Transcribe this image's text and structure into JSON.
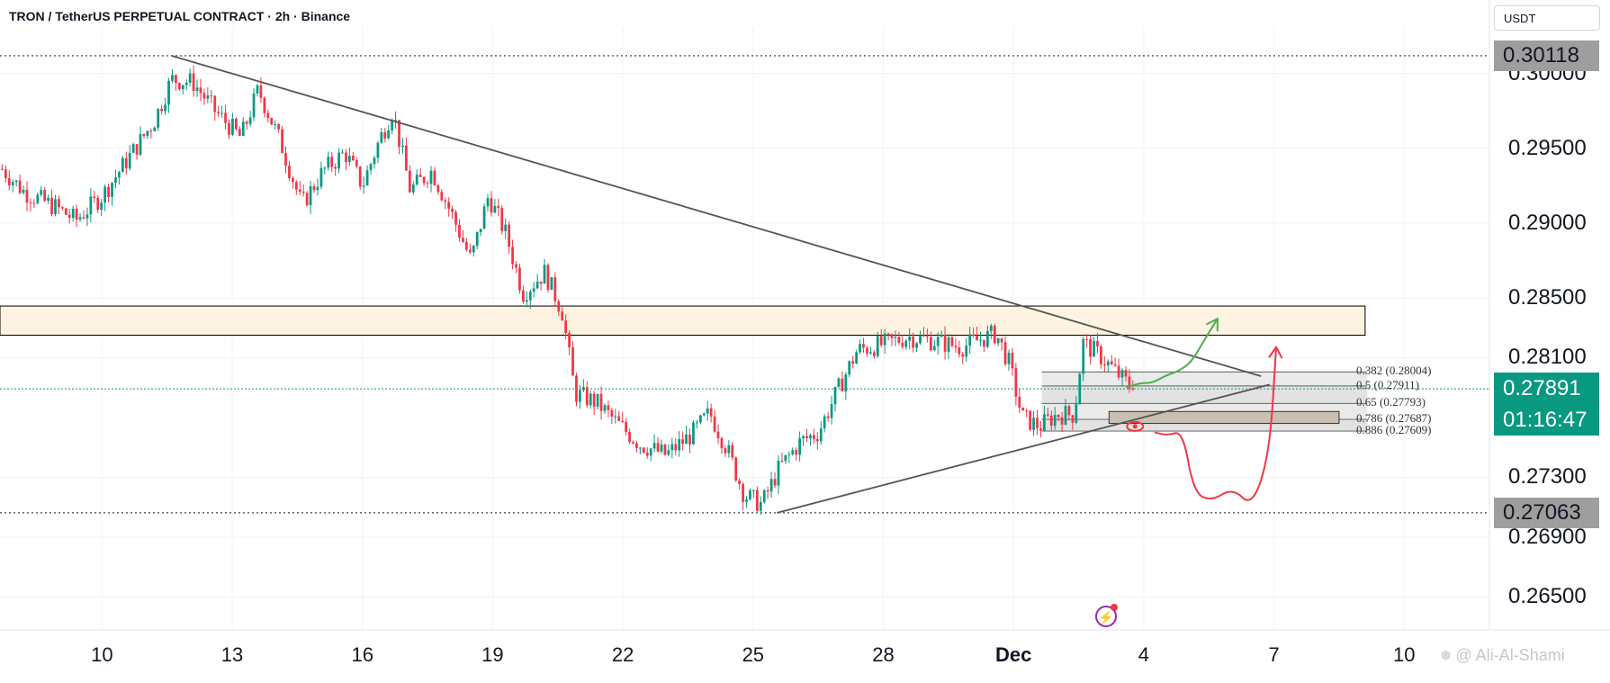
{
  "header": {
    "title": "TRON / TetherUS PERPETUAL CONTRACT · 2h · Binance",
    "currency": "USDT"
  },
  "watermark": "@ Ali-Al-Shami",
  "price_labels": {
    "high": "0.30118",
    "low": "0.27063",
    "current_price": "0.27891",
    "countdown": "01:16:47"
  },
  "fib_levels": [
    {
      "label": "0.382 (0.28004)",
      "price": 0.28004
    },
    {
      "label": "0.5 (0.27911)",
      "price": 0.27911
    },
    {
      "label": "0.65 (0.27793)",
      "price": 0.27793
    },
    {
      "label": "0.786 (0.27687)",
      "price": 0.27687
    },
    {
      "label": "0.886 (0.27609)",
      "price": 0.27609
    }
  ],
  "colors": {
    "up": "#089981",
    "down": "#f23645",
    "trendline": "#555555",
    "zone_fill": "#fdf3e0",
    "fib_fill": "#d8d8d8",
    "box_fill": "#c8bfb0",
    "green_arrow": "#4caf50",
    "red_arrow": "#f23645",
    "accent_icon": "#9c27b0"
  },
  "chart_data": {
    "type": "candlestick",
    "symbol": "TRON / TetherUS PERPETUAL CONTRACT",
    "interval": "2h",
    "exchange": "Binance",
    "y_ticks": [
      "0.30000",
      "0.29500",
      "0.29000",
      "0.28500",
      "0.28100",
      "0.27300",
      "0.26900",
      "0.26500"
    ],
    "x_ticks": [
      {
        "label": "10",
        "day": 10
      },
      {
        "label": "13",
        "day": 13
      },
      {
        "label": "16",
        "day": 16
      },
      {
        "label": "19",
        "day": 19
      },
      {
        "label": "22",
        "day": 22
      },
      {
        "label": "25",
        "day": 25
      },
      {
        "label": "28",
        "day": 28
      },
      {
        "label": "Dec",
        "day": 31,
        "bold": true
      },
      {
        "label": "4",
        "day": 34
      },
      {
        "label": "7",
        "day": 37
      },
      {
        "label": "10",
        "day": 40
      }
    ],
    "ylim": [
      0.2628,
      0.3031
    ],
    "xlim": [
      7.65,
      43.0
    ],
    "path_knots": [
      [
        7.7,
        0.2936
      ],
      [
        8.2,
        0.2921
      ],
      [
        8.9,
        0.2911
      ],
      [
        9.4,
        0.2902
      ],
      [
        10.0,
        0.2918
      ],
      [
        10.6,
        0.2943
      ],
      [
        11.2,
        0.2968
      ],
      [
        11.6,
        0.2996
      ],
      [
        12.1,
        0.2994
      ],
      [
        12.6,
        0.2975
      ],
      [
        13.2,
        0.2957
      ],
      [
        13.6,
        0.2989
      ],
      [
        14.1,
        0.2955
      ],
      [
        14.6,
        0.2912
      ],
      [
        15.1,
        0.2935
      ],
      [
        15.6,
        0.2947
      ],
      [
        16.0,
        0.2925
      ],
      [
        16.4,
        0.2956
      ],
      [
        16.7,
        0.2975
      ],
      [
        17.1,
        0.2922
      ],
      [
        17.6,
        0.2935
      ],
      [
        18.1,
        0.2903
      ],
      [
        18.5,
        0.2875
      ],
      [
        18.9,
        0.2918
      ],
      [
        19.3,
        0.2893
      ],
      [
        19.7,
        0.2853
      ],
      [
        20.2,
        0.2867
      ],
      [
        20.6,
        0.2841
      ],
      [
        20.9,
        0.2786
      ],
      [
        21.4,
        0.278
      ],
      [
        21.8,
        0.2768
      ],
      [
        22.4,
        0.2752
      ],
      [
        23.0,
        0.2745
      ],
      [
        23.6,
        0.2759
      ],
      [
        24.0,
        0.2773
      ],
      [
        24.4,
        0.2749
      ],
      [
        24.8,
        0.2718
      ],
      [
        25.2,
        0.2712
      ],
      [
        25.6,
        0.2736
      ],
      [
        26.1,
        0.2754
      ],
      [
        26.5,
        0.276
      ],
      [
        26.9,
        0.2785
      ],
      [
        27.4,
        0.2815
      ],
      [
        28.0,
        0.2819
      ],
      [
        28.6,
        0.2824
      ],
      [
        29.2,
        0.2821
      ],
      [
        29.8,
        0.2817
      ],
      [
        30.2,
        0.2822
      ],
      [
        30.6,
        0.2826
      ],
      [
        30.9,
        0.2806
      ],
      [
        31.2,
        0.277
      ],
      [
        31.6,
        0.2764
      ],
      [
        32.0,
        0.2772
      ],
      [
        32.4,
        0.2772
      ],
      [
        32.6,
        0.282
      ],
      [
        33.0,
        0.2811
      ],
      [
        33.4,
        0.2799
      ],
      [
        33.75,
        0.2789
      ]
    ],
    "candle_count": 320,
    "last_close": 0.27891,
    "last_day": 33.75,
    "highlight_lines": [
      {
        "price": 0.30118,
        "day_start": 7.65,
        "day_end": 43.0,
        "style": "dotted"
      },
      {
        "price": 0.27063,
        "day_start": 7.65,
        "day_end": 43.0,
        "style": "dotted"
      },
      {
        "price": 0.27891,
        "day_start": 7.65,
        "day_end": 43.0,
        "style": "dotted-green"
      }
    ],
    "trendlines": [
      {
        "from": [
          11.6,
          0.30118
        ],
        "to": [
          36.7,
          0.27976
        ]
      },
      {
        "from": [
          25.55,
          0.27063
        ],
        "to": [
          36.9,
          0.2792
        ]
      }
    ],
    "zone": {
      "price_top": 0.28445,
      "price_bottom": 0.2825,
      "day_start": 7.65,
      "day_end": 39.1
    },
    "fib_box": {
      "day_start": 31.65,
      "day_end": 39.15
    },
    "dark_box": {
      "price_top": 0.2774,
      "price_bottom": 0.2766,
      "day_start": 33.2,
      "day_end": 38.5
    },
    "eye_marker": {
      "day": 33.8,
      "price": 0.2764
    },
    "green_arrow_path": [
      [
        33.6,
        0.279
      ],
      [
        33.9,
        0.2793
      ],
      [
        34.2,
        0.2793
      ],
      [
        34.5,
        0.2798
      ],
      [
        34.8,
        0.2801
      ],
      [
        35.1,
        0.2807
      ],
      [
        35.4,
        0.2822
      ],
      [
        35.7,
        0.2836
      ]
    ],
    "red_arrow_path": [
      [
        34.25,
        0.276
      ],
      [
        34.55,
        0.2758
      ],
      [
        34.9,
        0.2761
      ],
      [
        35.15,
        0.272
      ],
      [
        35.55,
        0.2714
      ],
      [
        36.05,
        0.2723
      ],
      [
        36.5,
        0.271
      ],
      [
        36.9,
        0.2746
      ],
      [
        37.05,
        0.2817
      ]
    ],
    "seed": 7
  }
}
